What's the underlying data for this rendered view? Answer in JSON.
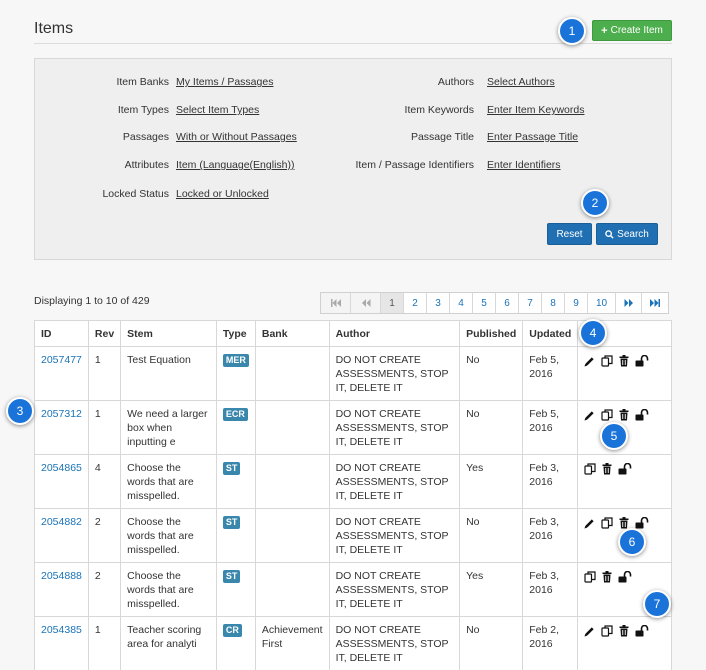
{
  "header": {
    "title": "Items",
    "create_label": "Create Item"
  },
  "filters": {
    "left": [
      {
        "label": "Item Banks",
        "value": "My Items / Passages"
      },
      {
        "label": "Item Types",
        "value": "Select Item Types"
      },
      {
        "label": "Passages",
        "value": "With or Without Passages"
      },
      {
        "label": "Attributes",
        "value": "Item (Language(English))"
      },
      {
        "label": "Locked Status",
        "value": "Locked or Unlocked"
      }
    ],
    "right": [
      {
        "label": "Authors",
        "value": "Select Authors"
      },
      {
        "label": "Item Keywords",
        "value": "Enter Item Keywords"
      },
      {
        "label": "Passage Title",
        "value": "Enter Passage Title"
      },
      {
        "label": "Item / Passage Identifiers",
        "value": "Enter Identifiers"
      }
    ],
    "reset_label": "Reset",
    "search_label": "Search"
  },
  "callouts": [
    "1",
    "2",
    "3",
    "4",
    "5",
    "6",
    "7"
  ],
  "results": {
    "summary": "Displaying 1 to 10 of 429"
  },
  "pagination": {
    "pages": [
      "1",
      "2",
      "3",
      "4",
      "5",
      "6",
      "7",
      "8",
      "9",
      "10"
    ],
    "current": "1"
  },
  "table": {
    "columns": [
      "ID",
      "Rev",
      "Stem",
      "Type",
      "Bank",
      "Author",
      "Published",
      "Updated"
    ],
    "rows": [
      {
        "id": "2057477",
        "rev": "1",
        "stem": "Test Equation",
        "type": "MER",
        "bank": "",
        "author": "DO NOT CREATE ASSESSMENTS, STOP IT, DELETE IT",
        "published": "No",
        "updated": "Feb 5, 2016",
        "actions": [
          "pencil-icon",
          "copy-icon",
          "trash-icon",
          "unlock-icon"
        ]
      },
      {
        "id": "2057312",
        "rev": "1",
        "stem": "We need a larger box when inputting e",
        "type": "ECR",
        "bank": "",
        "author": "DO NOT CREATE ASSESSMENTS, STOP IT, DELETE IT",
        "published": "No",
        "updated": "Feb 5, 2016",
        "actions": [
          "pencil-icon",
          "copy-icon",
          "trash-icon",
          "unlock-icon"
        ]
      },
      {
        "id": "2054865",
        "rev": "4",
        "stem": "Choose the words that are misspelled.",
        "type": "ST",
        "bank": "",
        "author": "DO NOT CREATE ASSESSMENTS, STOP IT, DELETE IT",
        "published": "Yes",
        "updated": "Feb 3, 2016",
        "actions": [
          "copy-icon",
          "trash-icon",
          "unlock-icon"
        ]
      },
      {
        "id": "2054882",
        "rev": "2",
        "stem": "Choose the words that are misspelled.",
        "type": "ST",
        "bank": "",
        "author": "DO NOT CREATE ASSESSMENTS, STOP IT, DELETE IT",
        "published": "No",
        "updated": "Feb 3, 2016",
        "actions": [
          "pencil-icon",
          "copy-icon",
          "trash-icon",
          "unlock-icon"
        ]
      },
      {
        "id": "2054888",
        "rev": "2",
        "stem": "Choose the words that are misspelled.",
        "type": "ST",
        "bank": "",
        "author": "DO NOT CREATE ASSESSMENTS, STOP IT, DELETE IT",
        "published": "Yes",
        "updated": "Feb 3, 2016",
        "actions": [
          "copy-icon",
          "trash-icon",
          "unlock-icon"
        ]
      },
      {
        "id": "2054385",
        "rev": "1",
        "stem": "Teacher scoring area for analyti",
        "type": "CR",
        "bank": "Achievement First",
        "author": "DO NOT CREATE ASSESSMENTS, STOP IT, DELETE IT",
        "published": "No",
        "updated": "Feb 2, 2016",
        "actions": [
          "pencil-icon",
          "copy-icon",
          "trash-icon",
          "unlock-icon"
        ]
      }
    ]
  },
  "colors": {
    "create_button": "#4cae4c",
    "primary_button": "#1f6fb2",
    "link": "#1a73b8",
    "type_badge": "#3a87ad",
    "callout": "#1a73d9"
  }
}
